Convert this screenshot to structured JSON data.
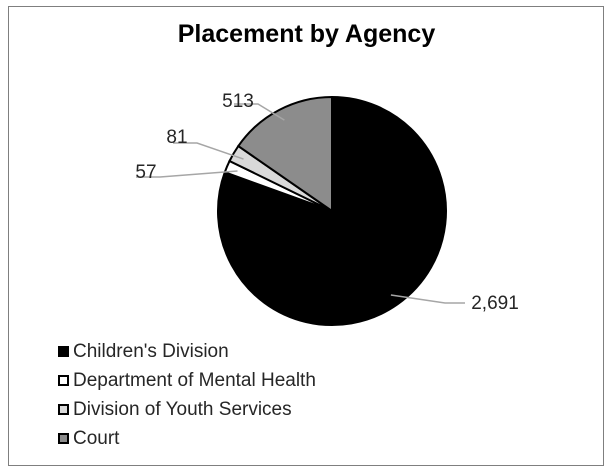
{
  "chart_data": {
    "type": "pie",
    "title": "Placement by Agency",
    "categories": [
      "Children's Division",
      "Department of Mental Health",
      "Division of Youth Services",
      "Court"
    ],
    "values": [
      2691,
      57,
      81,
      513
    ],
    "data_labels": [
      "2,691",
      "57",
      "81",
      "513"
    ],
    "colors": [
      "#000000",
      "#ffffff",
      "#d9d9d9",
      "#8c8c8c"
    ],
    "legend_position": "bottom-left",
    "start_angle": "12 o'clock",
    "direction": "clockwise"
  }
}
